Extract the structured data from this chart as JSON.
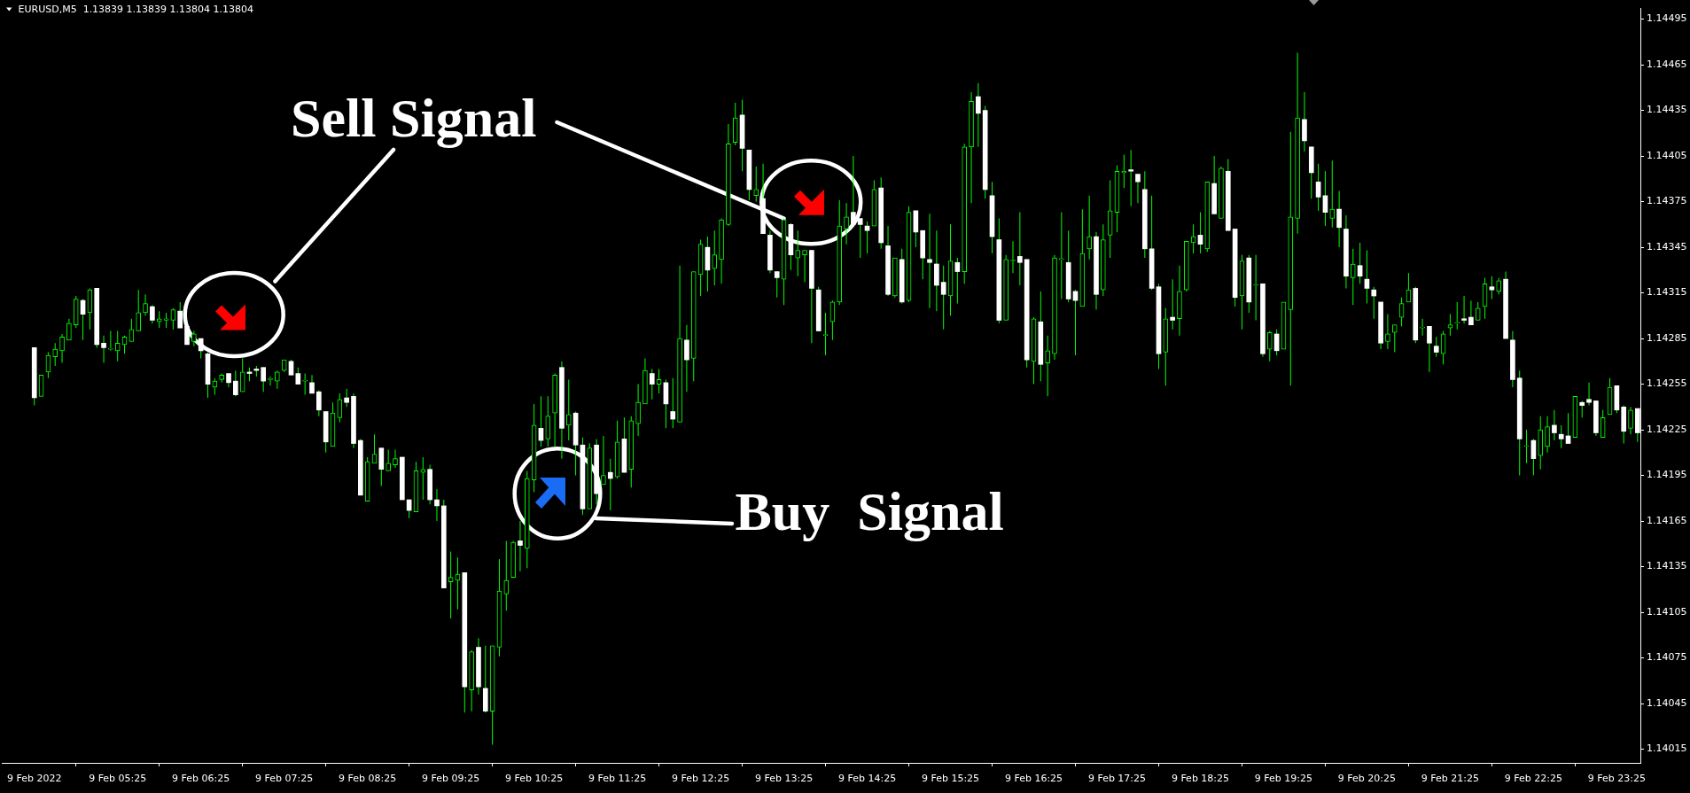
{
  "chart_data": {
    "type": "candlestick",
    "title": "EURUSD,M5  1.13839 1.13839 1.13804 1.13804",
    "categories": [
      "9 Feb 2022",
      null,
      null,
      null,
      null,
      null,
      null,
      null,
      null,
      null,
      null,
      null,
      "9 Feb 05:25",
      null,
      null,
      null,
      null,
      null,
      null,
      null,
      null,
      null,
      null,
      null,
      "9 Feb 06:25",
      null,
      null,
      null,
      null,
      null,
      null,
      null,
      null,
      null,
      null,
      null,
      "9 Feb 07:25",
      null,
      null,
      null,
      null,
      null,
      null,
      null,
      null,
      null,
      null,
      null,
      "9 Feb 08:25",
      null,
      null,
      null,
      null,
      null,
      null,
      null,
      null,
      null,
      null,
      null,
      "9 Feb 09:25",
      null,
      null,
      null,
      null,
      null,
      null,
      null,
      null,
      null,
      null,
      null,
      "9 Feb 10:25",
      null,
      null,
      null,
      null,
      null,
      null,
      null,
      null,
      null,
      null,
      null,
      "9 Feb 11:25",
      null,
      null,
      null,
      null,
      null,
      null,
      null,
      null,
      null,
      null,
      null,
      "9 Feb 12:25",
      null,
      null,
      null,
      null,
      null,
      null,
      null,
      null,
      null,
      null,
      null,
      "9 Feb 13:25",
      null,
      null,
      null,
      null,
      null,
      null,
      null,
      null,
      null,
      null,
      null,
      "9 Feb 14:25",
      null,
      null,
      null,
      null,
      null,
      null,
      null,
      null,
      null,
      null,
      null,
      "9 Feb 15:25",
      null,
      null,
      null,
      null,
      null,
      null,
      null,
      null,
      null,
      null,
      null,
      "9 Feb 16:25",
      null,
      null,
      null,
      null,
      null,
      null,
      null,
      null,
      null,
      null,
      null,
      "9 Feb 17:25",
      null,
      null,
      null,
      null,
      null,
      null,
      null,
      null,
      null,
      null,
      null,
      "9 Feb 18:25",
      null,
      null,
      null,
      null,
      null,
      null,
      null,
      null,
      null,
      null,
      null,
      "9 Feb 19:25",
      null,
      null,
      null,
      null,
      null,
      null,
      null,
      null,
      null,
      null,
      null,
      "9 Feb 20:25",
      null,
      null,
      null,
      null,
      null,
      null,
      null,
      null,
      null,
      null,
      null,
      "9 Feb 21:25",
      null,
      null,
      null,
      null,
      null,
      null,
      null,
      null,
      null,
      null,
      null,
      "9 Feb 22:25",
      null,
      null,
      null,
      null,
      null,
      null,
      null,
      null,
      null,
      null,
      null,
      "9 Feb 23:25",
      null,
      null,
      null
    ],
    "ohlc": [
      [
        1.14279,
        1.14279,
        1.14241,
        1.14246
      ],
      [
        1.14247,
        1.14261,
        1.14247,
        1.14261
      ],
      [
        1.14263,
        1.14276,
        1.14259,
        1.14274
      ],
      [
        1.14273,
        1.14282,
        1.14267,
        1.14278
      ],
      [
        1.14277,
        1.14288,
        1.14269,
        1.14286
      ],
      [
        1.14284,
        1.14298,
        1.14284,
        1.14295
      ],
      [
        1.14294,
        1.14313,
        1.14292,
        1.14311
      ],
      [
        1.1431,
        1.14311,
        1.14284,
        1.14301
      ],
      [
        1.14302,
        1.14318,
        1.14291,
        1.14317
      ],
      [
        1.14318,
        1.14318,
        1.14279,
        1.14281
      ],
      [
        1.14282,
        1.14287,
        1.14269,
        1.14279
      ],
      [
        1.14278,
        1.1429,
        1.14277,
        1.14278
      ],
      [
        1.14277,
        1.1429,
        1.1427,
        1.14282
      ],
      [
        1.14281,
        1.14287,
        1.14275,
        1.14286
      ],
      [
        1.14283,
        1.14298,
        1.14283,
        1.14291
      ],
      [
        1.1429,
        1.14317,
        1.1429,
        1.14302
      ],
      [
        1.14302,
        1.14314,
        1.143,
        1.14308
      ],
      [
        1.14306,
        1.14307,
        1.14295,
        1.14297
      ],
      [
        1.14296,
        1.14303,
        1.14292,
        1.14298
      ],
      [
        1.14297,
        1.14302,
        1.14292,
        1.14298
      ],
      [
        1.14297,
        1.14305,
        1.14291,
        1.14304
      ],
      [
        1.14303,
        1.14309,
        1.14292,
        1.14292
      ],
      [
        1.14293,
        1.14293,
        1.14281,
        1.14281
      ],
      [
        1.14283,
        1.1429,
        1.1428,
        1.14288
      ],
      [
        1.14285,
        1.14285,
        1.14272,
        1.14277
      ],
      [
        1.14275,
        1.14276,
        1.14246,
        1.14255
      ],
      [
        1.14253,
        1.14259,
        1.14248,
        1.14257
      ],
      [
        1.14258,
        1.14262,
        1.14256,
        1.14261
      ],
      [
        1.14262,
        1.14262,
        1.14253,
        1.14256
      ],
      [
        1.14257,
        1.14264,
        1.14247,
        1.14248
      ],
      [
        1.1425,
        1.14272,
        1.1425,
        1.14263
      ],
      [
        1.14263,
        1.14266,
        1.14257,
        1.14262
      ],
      [
        1.14265,
        1.14267,
        1.1426,
        1.14264
      ],
      [
        1.14266,
        1.14266,
        1.1425,
        1.14257
      ],
      [
        1.14258,
        1.1426,
        1.14254,
        1.14258
      ],
      [
        1.14257,
        1.14264,
        1.14252,
        1.14263
      ],
      [
        1.14264,
        1.14271,
        1.14263,
        1.14271
      ],
      [
        1.1427,
        1.14271,
        1.14261,
        1.14261
      ],
      [
        1.14262,
        1.14266,
        1.14255,
        1.14255
      ],
      [
        1.14257,
        1.14262,
        1.14248,
        1.14257
      ],
      [
        1.14256,
        1.14261,
        1.14249,
        1.14249
      ],
      [
        1.1425,
        1.14251,
        1.14234,
        1.14238
      ],
      [
        1.14237,
        1.14237,
        1.1421,
        1.14217
      ],
      [
        1.14214,
        1.14243,
        1.14214,
        1.14236
      ],
      [
        1.14233,
        1.14249,
        1.1423,
        1.14245
      ],
      [
        1.14246,
        1.14252,
        1.1424,
        1.14243
      ],
      [
        1.14247,
        1.14249,
        1.14213,
        1.14216
      ],
      [
        1.14218,
        1.14219,
        1.14182,
        1.14182
      ],
      [
        1.14178,
        1.14207,
        1.14178,
        1.14204
      ],
      [
        1.14203,
        1.14222,
        1.14203,
        1.14209
      ],
      [
        1.14213,
        1.14213,
        1.14188,
        1.14199
      ],
      [
        1.14198,
        1.14212,
        1.14198,
        1.14203
      ],
      [
        1.14202,
        1.14212,
        1.142,
        1.14206
      ],
      [
        1.14207,
        1.14207,
        1.14179,
        1.14179
      ],
      [
        1.14179,
        1.14179,
        1.14167,
        1.14172
      ],
      [
        1.14171,
        1.14204,
        1.14171,
        1.14198
      ],
      [
        1.14197,
        1.14207,
        1.14179,
        1.14199
      ],
      [
        1.14199,
        1.14202,
        1.14176,
        1.14179
      ],
      [
        1.14179,
        1.14186,
        1.14165,
        1.14175
      ],
      [
        1.14175,
        1.14179,
        1.14121,
        1.14121
      ],
      [
        1.14125,
        1.14145,
        1.14101,
        1.14128
      ],
      [
        1.14126,
        1.14141,
        1.14107,
        1.1413
      ],
      [
        1.14131,
        1.14131,
        1.14039,
        1.14056
      ],
      [
        1.14054,
        1.1408,
        1.1404,
        1.14079
      ],
      [
        1.14082,
        1.14088,
        1.14051,
        1.14056
      ],
      [
        1.14055,
        1.14083,
        1.14039,
        1.1404
      ],
      [
        1.1404,
        1.14083,
        1.14018,
        1.14083
      ],
      [
        1.14082,
        1.1414,
        1.14076,
        1.14119
      ],
      [
        1.14117,
        1.14152,
        1.14106,
        1.14126
      ],
      [
        1.14128,
        1.14152,
        1.14128,
        1.14151
      ],
      [
        1.14152,
        1.14165,
        1.14132,
        1.14149
      ],
      [
        1.14147,
        1.14198,
        1.14134,
        1.14193
      ],
      [
        1.14192,
        1.14242,
        1.14184,
        1.14228
      ],
      [
        1.14226,
        1.14247,
        1.14214,
        1.14218
      ],
      [
        1.14219,
        1.14247,
        1.14214,
        1.14234
      ],
      [
        1.14236,
        1.14262,
        1.14214,
        1.14261
      ],
      [
        1.14266,
        1.1427,
        1.14206,
        1.14226
      ],
      [
        1.14228,
        1.14258,
        1.14218,
        1.14235
      ],
      [
        1.14236,
        1.14237,
        1.14195,
        1.14215
      ],
      [
        1.14215,
        1.1422,
        1.14169,
        1.14173
      ],
      [
        1.14173,
        1.14216,
        1.14173,
        1.14213
      ],
      [
        1.14215,
        1.14219,
        1.14176,
        1.14183
      ],
      [
        1.14189,
        1.14221,
        1.14189,
        1.14195
      ],
      [
        1.14197,
        1.14206,
        1.14172,
        1.14193
      ],
      [
        1.14194,
        1.14231,
        1.14193,
        1.14217
      ],
      [
        1.14219,
        1.14233,
        1.14197,
        1.14197
      ],
      [
        1.14199,
        1.14234,
        1.14187,
        1.14231
      ],
      [
        1.14229,
        1.14255,
        1.14221,
        1.14243
      ],
      [
        1.14242,
        1.14272,
        1.14242,
        1.14264
      ],
      [
        1.14262,
        1.14265,
        1.14245,
        1.14255
      ],
      [
        1.14255,
        1.14265,
        1.14249,
        1.14258
      ],
      [
        1.14256,
        1.14258,
        1.14226,
        1.14242
      ],
      [
        1.14237,
        1.14259,
        1.14226,
        1.14232
      ],
      [
        1.1423,
        1.14333,
        1.1423,
        1.14285
      ],
      [
        1.14284,
        1.14294,
        1.1425,
        1.14271
      ],
      [
        1.14272,
        1.14329,
        1.14257,
        1.14329
      ],
      [
        1.14327,
        1.1435,
        1.14313,
        1.14347
      ],
      [
        1.14345,
        1.14352,
        1.14316,
        1.1433
      ],
      [
        1.14331,
        1.14356,
        1.1432,
        1.1434
      ],
      [
        1.14337,
        1.14364,
        1.14321,
        1.14363
      ],
      [
        1.1436,
        1.14426,
        1.14359,
        1.14413
      ],
      [
        1.14414,
        1.1444,
        1.14412,
        1.1443
      ],
      [
        1.14432,
        1.14442,
        1.14395,
        1.1441
      ],
      [
        1.14409,
        1.14409,
        1.14376,
        1.14383
      ],
      [
        1.14379,
        1.14398,
        1.14375,
        1.14383
      ],
      [
        1.14377,
        1.144,
        1.14354,
        1.14354
      ],
      [
        1.14353,
        1.14356,
        1.14328,
        1.1433
      ],
      [
        1.14329,
        1.14329,
        1.14312,
        1.14325
      ],
      [
        1.14324,
        1.14364,
        1.14307,
        1.14363
      ],
      [
        1.1436,
        1.14361,
        1.1433,
        1.1434
      ],
      [
        1.14338,
        1.14356,
        1.14326,
        1.14343
      ],
      [
        1.1434,
        1.14343,
        1.14322,
        1.14343
      ],
      [
        1.14343,
        1.14343,
        1.14282,
        1.14318
      ],
      [
        1.14317,
        1.14319,
        1.1429,
        1.1429
      ],
      [
        1.14287,
        1.14302,
        1.14274,
        1.14287
      ],
      [
        1.14296,
        1.1431,
        1.14284,
        1.14309
      ],
      [
        1.14309,
        1.14376,
        1.14307,
        1.14359
      ],
      [
        1.14357,
        1.14374,
        1.14347,
        1.14365
      ],
      [
        1.14368,
        1.14405,
        1.1436,
        1.1436
      ],
      [
        1.14364,
        1.14364,
        1.14338,
        1.1436
      ],
      [
        1.14359,
        1.14362,
        1.14341,
        1.14356
      ],
      [
        1.14359,
        1.14389,
        1.14359,
        1.14383
      ],
      [
        1.14384,
        1.14391,
        1.14344,
        1.14348
      ],
      [
        1.14346,
        1.14359,
        1.14313,
        1.14314
      ],
      [
        1.14313,
        1.14338,
        1.14312,
        1.14338
      ],
      [
        1.14337,
        1.14344,
        1.14308,
        1.14309
      ],
      [
        1.1431,
        1.14372,
        1.14309,
        1.14368
      ],
      [
        1.14369,
        1.14369,
        1.14345,
        1.14355
      ],
      [
        1.14356,
        1.14356,
        1.14324,
        1.14338
      ],
      [
        1.14337,
        1.14367,
        1.14305,
        1.14335
      ],
      [
        1.14334,
        1.14356,
        1.14303,
        1.1432
      ],
      [
        1.14322,
        1.14333,
        1.14291,
        1.14314
      ],
      [
        1.14313,
        1.1436,
        1.143,
        1.14336
      ],
      [
        1.14335,
        1.14338,
        1.14308,
        1.14329
      ],
      [
        1.14329,
        1.14413,
        1.14321,
        1.14411
      ],
      [
        1.14411,
        1.14447,
        1.14374,
        1.14441
      ],
      [
        1.14444,
        1.14453,
        1.14411,
        1.14433
      ],
      [
        1.14435,
        1.14438,
        1.14377,
        1.14383
      ],
      [
        1.14379,
        1.14388,
        1.14341,
        1.14352
      ],
      [
        1.1435,
        1.14364,
        1.14295,
        1.14297
      ],
      [
        1.14297,
        1.1434,
        1.14297,
        1.14337
      ],
      [
        1.14336,
        1.14349,
        1.14328,
        1.14336
      ],
      [
        1.14339,
        1.14368,
        1.1432,
        1.14335
      ],
      [
        1.14337,
        1.14337,
        1.14266,
        1.14271
      ],
      [
        1.1427,
        1.14299,
        1.14255,
        1.14298
      ],
      [
        1.14296,
        1.14316,
        1.14257,
        1.14268
      ],
      [
        1.14269,
        1.14287,
        1.14247,
        1.14277
      ],
      [
        1.14275,
        1.1434,
        1.14271,
        1.14338
      ],
      [
        1.14337,
        1.14368,
        1.14311,
        1.14337
      ],
      [
        1.14335,
        1.14356,
        1.14309,
        1.14311
      ],
      [
        1.14316,
        1.14317,
        1.14274,
        1.1431
      ],
      [
        1.14306,
        1.1437,
        1.14306,
        1.14341
      ],
      [
        1.14344,
        1.14379,
        1.14337,
        1.14352
      ],
      [
        1.14352,
        1.14355,
        1.14304,
        1.14314
      ],
      [
        1.14317,
        1.1436,
        1.14313,
        1.1435
      ],
      [
        1.14353,
        1.14389,
        1.14338,
        1.14369
      ],
      [
        1.14368,
        1.14399,
        1.14355,
        1.14395
      ],
      [
        1.14394,
        1.14406,
        1.14384,
        1.14395
      ],
      [
        1.14396,
        1.14409,
        1.14372,
        1.14395
      ],
      [
        1.14393,
        1.14393,
        1.14374,
        1.14388
      ],
      [
        1.14383,
        1.14395,
        1.14338,
        1.14344
      ],
      [
        1.14344,
        1.14379,
        1.14317,
        1.14318
      ],
      [
        1.14319,
        1.14321,
        1.14265,
        1.14275
      ],
      [
        1.14276,
        1.14305,
        1.14254,
        1.14298
      ],
      [
        1.14299,
        1.14324,
        1.14291,
        1.14297
      ],
      [
        1.14298,
        1.14333,
        1.14287,
        1.14316
      ],
      [
        1.14317,
        1.14349,
        1.14316,
        1.14349
      ],
      [
        1.14348,
        1.1436,
        1.14341,
        1.14352
      ],
      [
        1.14353,
        1.14368,
        1.14341,
        1.14347
      ],
      [
        1.14344,
        1.14388,
        1.14342,
        1.14388
      ],
      [
        1.14387,
        1.14405,
        1.14367,
        1.14367
      ],
      [
        1.14364,
        1.14398,
        1.14364,
        1.14397
      ],
      [
        1.14395,
        1.14403,
        1.14356,
        1.14356
      ],
      [
        1.14357,
        1.14357,
        1.14306,
        1.14312
      ],
      [
        1.14313,
        1.1434,
        1.14291,
        1.14336
      ],
      [
        1.14338,
        1.1434,
        1.14302,
        1.14309
      ],
      [
        1.1432,
        1.1434,
        1.14297,
        1.1432
      ],
      [
        1.14321,
        1.14321,
        1.14273,
        1.14275
      ],
      [
        1.14278,
        1.1429,
        1.1427,
        1.14289
      ],
      [
        1.14288,
        1.14291,
        1.14274,
        1.14277
      ],
      [
        1.14278,
        1.14309,
        1.14278,
        1.14309
      ],
      [
        1.14304,
        1.14421,
        1.14254,
        1.14365
      ],
      [
        1.14364,
        1.14473,
        1.14354,
        1.1443
      ],
      [
        1.14429,
        1.14447,
        1.14408,
        1.14415
      ],
      [
        1.14411,
        1.14411,
        1.14377,
        1.14394
      ],
      [
        1.14388,
        1.144,
        1.14369,
        1.14378
      ],
      [
        1.14379,
        1.14395,
        1.14359,
        1.14368
      ],
      [
        1.14364,
        1.14402,
        1.14358,
        1.1437
      ],
      [
        1.1437,
        1.14382,
        1.14345,
        1.14358
      ],
      [
        1.14357,
        1.14366,
        1.14318,
        1.14326
      ],
      [
        1.14325,
        1.14344,
        1.14307,
        1.14334
      ],
      [
        1.14333,
        1.14348,
        1.14321,
        1.14326
      ],
      [
        1.14324,
        1.14343,
        1.14308,
        1.14318
      ],
      [
        1.14317,
        1.14319,
        1.14298,
        1.14313
      ],
      [
        1.14309,
        1.14309,
        1.14278,
        1.14282
      ],
      [
        1.14283,
        1.14301,
        1.14278,
        1.14288
      ],
      [
        1.14289,
        1.14294,
        1.14276,
        1.14294
      ],
      [
        1.14299,
        1.14312,
        1.14293,
        1.14308
      ],
      [
        1.14309,
        1.14328,
        1.14309,
        1.14317
      ],
      [
        1.14318,
        1.14319,
        1.14282,
        1.14284
      ],
      [
        1.14292,
        1.14298,
        1.14287,
        1.14292
      ],
      [
        1.14293,
        1.14293,
        1.14263,
        1.14282
      ],
      [
        1.1428,
        1.14286,
        1.14273,
        1.14276
      ],
      [
        1.14275,
        1.1429,
        1.14268,
        1.14288
      ],
      [
        1.14292,
        1.14301,
        1.14287,
        1.14294
      ],
      [
        1.14295,
        1.14309,
        1.14291,
        1.14295
      ],
      [
        1.14298,
        1.14313,
        1.14295,
        1.14297
      ],
      [
        1.14299,
        1.1431,
        1.14294,
        1.14294
      ],
      [
        1.14297,
        1.14309,
        1.14297,
        1.14305
      ],
      [
        1.14306,
        1.14325,
        1.14298,
        1.14321
      ],
      [
        1.14319,
        1.14326,
        1.14311,
        1.14317
      ],
      [
        1.14316,
        1.14325,
        1.14314,
        1.14323
      ],
      [
        1.14324,
        1.14329,
        1.14285,
        1.14285
      ],
      [
        1.14284,
        1.1429,
        1.14253,
        1.14258
      ],
      [
        1.14259,
        1.14264,
        1.14195,
        1.14219
      ],
      [
        1.14214,
        1.14225,
        1.14203,
        1.14214
      ],
      [
        1.14218,
        1.14219,
        1.14195,
        1.14206
      ],
      [
        1.14208,
        1.14234,
        1.14199,
        1.14225
      ],
      [
        1.14214,
        1.14234,
        1.1421,
        1.14227
      ],
      [
        1.14228,
        1.14238,
        1.14218,
        1.14223
      ],
      [
        1.14222,
        1.14228,
        1.14213,
        1.14219
      ],
      [
        1.14221,
        1.14236,
        1.14216,
        1.14216
      ],
      [
        1.1422,
        1.14247,
        1.1422,
        1.14247
      ],
      [
        1.14243,
        1.14244,
        1.14233,
        1.14241
      ],
      [
        1.14245,
        1.14256,
        1.14241,
        1.14243
      ],
      [
        1.14244,
        1.14244,
        1.14221,
        1.14223
      ],
      [
        1.1422,
        1.14238,
        1.1422,
        1.14233
      ],
      [
        1.14235,
        1.14259,
        1.14235,
        1.14253
      ],
      [
        1.14254,
        1.14254,
        1.14236,
        1.14238
      ],
      [
        1.1424,
        1.14241,
        1.14216,
        1.14224
      ],
      [
        1.14226,
        1.1424,
        1.14222,
        1.14238
      ],
      [
        1.14239,
        1.14239,
        1.14217,
        1.14223
      ]
    ],
    "colors": [
      "#ffffff",
      "#00ff00",
      "#00ff00",
      "#00ff00",
      "#00ff00",
      "#00ff00",
      "#00ff00",
      "#ffffff",
      "#00ff00",
      "#ffffff",
      "#ffffff",
      "#00ff00",
      "#00ff00",
      "#00ff00",
      "#00ff00",
      "#00ff00",
      "#00ff00",
      "#ffffff",
      "#00ff00",
      "#00ff00",
      "#00ff00",
      "#ffffff",
      "#ffffff",
      "#00ff00",
      "#ffffff",
      "#ffffff",
      "#00ff00",
      "#00ff00",
      "#ffffff",
      "#ffffff",
      "#00ff00",
      "#ffffff",
      "#ffffff",
      "#ffffff",
      "#00ff00",
      "#00ff00",
      "#00ff00",
      "#ffffff",
      "#ffffff",
      "#00ff00",
      "#ffffff",
      "#ffffff",
      "#ffffff",
      "#00ff00",
      "#00ff00",
      "#ffffff",
      "#ffffff",
      "#ffffff",
      "#00ff00",
      "#00ff00",
      "#ffffff",
      "#00ff00",
      "#00ff00",
      "#ffffff",
      "#ffffff",
      "#00ff00",
      "#00ff00",
      "#ffffff",
      "#ffffff",
      "#ffffff",
      "#00ff00",
      "#00ff00",
      "#ffffff",
      "#00ff00",
      "#ffffff",
      "#ffffff",
      "#00ff00",
      "#00ff00",
      "#00ff00",
      "#00ff00",
      "#ffffff",
      "#00ff00",
      "#00ff00",
      "#ffffff",
      "#00ff00",
      "#00ff00",
      "#ffffff",
      "#00ff00",
      "#ffffff",
      "#ffffff",
      "#00ff00",
      "#ffffff",
      "#00ff00",
      "#ffffff",
      "#00ff00",
      "#ffffff",
      "#00ff00",
      "#00ff00",
      "#00ff00",
      "#ffffff",
      "#00ff00",
      "#ffffff",
      "#ffffff",
      "#00ff00",
      "#ffffff",
      "#00ff00",
      "#00ff00",
      "#ffffff",
      "#00ff00",
      "#00ff00",
      "#00ff00",
      "#00ff00",
      "#ffffff",
      "#ffffff",
      "#00ff00",
      "#ffffff",
      "#ffffff",
      "#ffffff",
      "#00ff00",
      "#ffffff",
      "#00ff00",
      "#00ff00",
      "#ffffff",
      "#ffffff",
      "#00ff00",
      "#00ff00",
      "#00ff00",
      "#00ff00",
      "#ffffff",
      "#ffffff",
      "#ffffff",
      "#00ff00",
      "#ffffff",
      "#ffffff",
      "#00ff00",
      "#ffffff",
      "#00ff00",
      "#ffffff",
      "#ffffff",
      "#ffffff",
      "#ffffff",
      "#ffffff",
      "#00ff00",
      "#ffffff",
      "#00ff00",
      "#00ff00",
      "#ffffff",
      "#ffffff",
      "#ffffff",
      "#ffffff",
      "#00ff00",
      "#00ff00",
      "#ffffff",
      "#ffffff",
      "#00ff00",
      "#ffffff",
      "#00ff00",
      "#00ff00",
      "#00ff00",
      "#ffffff",
      "#ffffff",
      "#00ff00",
      "#00ff00",
      "#ffffff",
      "#00ff00",
      "#00ff00",
      "#00ff00",
      "#00ff00",
      "#ffffff",
      "#ffffff",
      "#ffffff",
      "#ffffff",
      "#ffffff",
      "#00ff00",
      "#ffffff",
      "#00ff00",
      "#00ff00",
      "#00ff00",
      "#ffffff",
      "#00ff00",
      "#ffffff",
      "#00ff00",
      "#ffffff",
      "#ffffff",
      "#00ff00",
      "#ffffff",
      "#00ff00",
      "#ffffff",
      "#00ff00",
      "#ffffff",
      "#00ff00",
      "#00ff00",
      "#00ff00",
      "#ffffff",
      "#ffffff",
      "#ffffff",
      "#ffffff",
      "#00ff00",
      "#ffffff",
      "#ffffff",
      "#00ff00",
      "#ffffff",
      "#ffffff",
      "#ffffff",
      "#ffffff",
      "#00ff00",
      "#00ff00",
      "#00ff00",
      "#00ff00",
      "#ffffff",
      "#00ff00",
      "#ffffff",
      "#ffffff",
      "#00ff00",
      "#00ff00",
      "#00ff00",
      "#ffffff",
      "#ffffff",
      "#00ff00",
      "#00ff00",
      "#ffffff",
      "#00ff00",
      "#ffffff",
      "#ffffff",
      "#ffffff",
      "#00ff00",
      "#ffffff",
      "#00ff00",
      "#00ff00",
      "#ffffff",
      "#ffffff",
      "#ffffff",
      "#00ff00",
      "#ffffff",
      "#ffffff",
      "#ffffff",
      "#00ff00",
      "#00ff00",
      "#ffffff",
      "#ffffff",
      "#00ff00",
      "#ffffff"
    ],
    "color": "#00ff00",
    "ylim": [
      1.14006,
      1.14502
    ],
    "yticks": [
      1.14015,
      1.14045,
      1.14075,
      1.14105,
      1.14135,
      1.14165,
      1.14195,
      1.14225,
      1.14255,
      1.14285,
      1.14315,
      1.14345,
      1.14375,
      1.14405,
      1.14435,
      1.14465,
      1.14495
    ],
    "annotations": [
      {
        "text": "Sell Signal",
        "x": "9 Feb 13:25",
        "y": 1.14364
      },
      "Buy  Signal"
    ]
  }
}
